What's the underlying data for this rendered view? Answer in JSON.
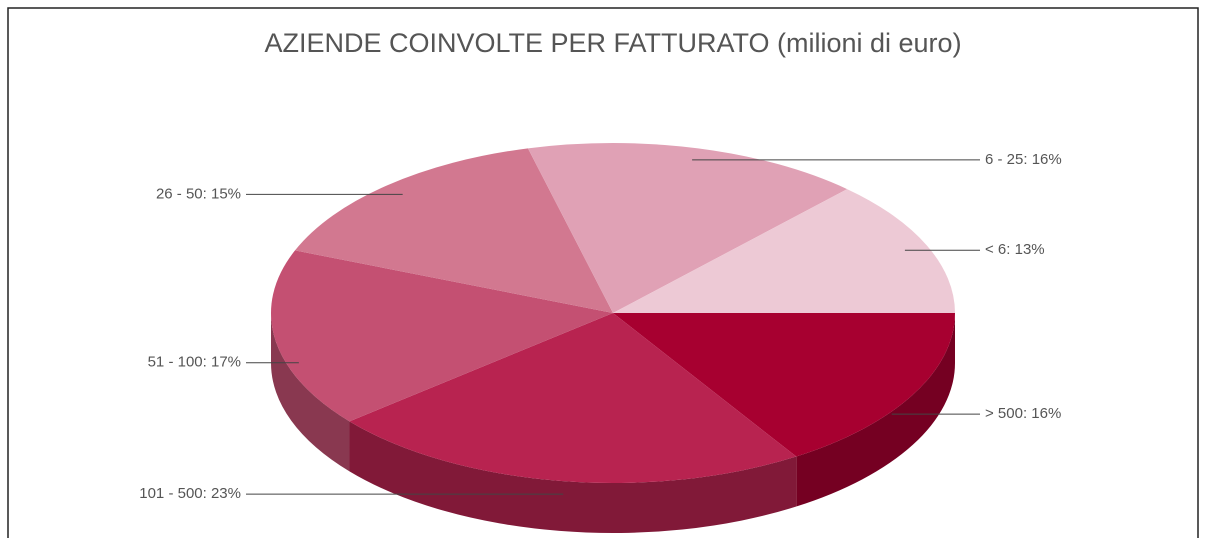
{
  "chart_data": {
    "type": "pie",
    "title": "AZIENDE COINVOLTE PER FATTURATO (milioni di euro)",
    "values": [
      16,
      23,
      17,
      15,
      16,
      13
    ],
    "value_labels": [
      "> 500: 16%",
      "101 - 500: 23%",
      "51 - 100: 17%",
      "26 - 50: 15%",
      "6 - 25: 16%",
      "< 6: 13%"
    ],
    "colors": [
      "#a70030",
      "#b82350",
      "#c45072",
      "#d27890",
      "#e0a1b5",
      "#edc9d5"
    ]
  }
}
